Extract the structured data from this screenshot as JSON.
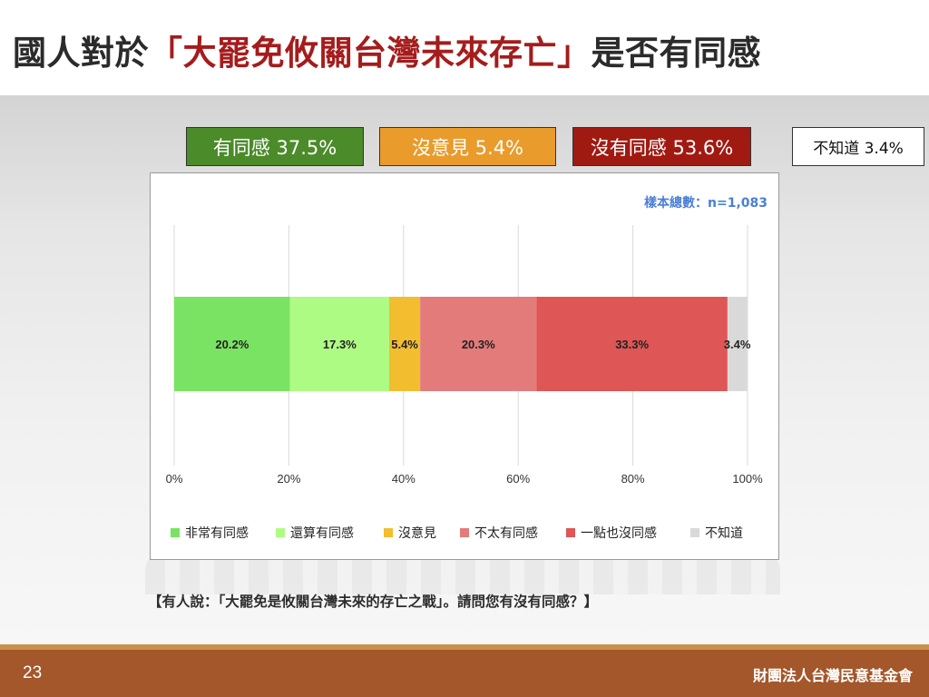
{
  "title": {
    "prefix": "國人對於",
    "highlight": "「大罷免攸關台灣未來存亡」",
    "suffix": "是否有同感"
  },
  "summary": {
    "agree": "有同感 37.5%",
    "no_opinion": "沒意見 5.4%",
    "disagree": "沒有同感 53.6%",
    "unknown": "不知道 3.4%"
  },
  "sample_size": "樣本總數：n=1,083",
  "question": "【有人說：「大罷免是攸關台灣未來的存亡之戰」。請問您有沒有同感？】",
  "footer": {
    "page_number": "23",
    "organization": "財團法人台灣民意基金會"
  },
  "colors": {
    "very_agree": "#7be363",
    "somewhat_agree": "#aefb84",
    "no_opinion": "#f2bd2f",
    "not_really": "#e47b7b",
    "not_at_all": "#de5656",
    "unknown": "#d9d9d9",
    "sample_text": "#4a7fd6",
    "grid": "#d9d9d9"
  },
  "chart_data": {
    "type": "bar",
    "orientation": "horizontal-stacked",
    "xlim": [
      0,
      100
    ],
    "x_ticks": [
      "0%",
      "20%",
      "40%",
      "60%",
      "80%",
      "100%"
    ],
    "grid": true,
    "legend_position": "bottom",
    "series": [
      {
        "name": "非常有同感",
        "value": 20.2,
        "label": "20.2%",
        "color_key": "very_agree"
      },
      {
        "name": "還算有同感",
        "value": 17.3,
        "label": "17.3%",
        "color_key": "somewhat_agree"
      },
      {
        "name": "沒意見",
        "value": 5.4,
        "label": "5.4%",
        "color_key": "no_opinion"
      },
      {
        "name": "不太有同感",
        "value": 20.3,
        "label": "20.3%",
        "color_key": "not_really"
      },
      {
        "name": "一點也沒同感",
        "value": 33.3,
        "label": "33.3%",
        "color_key": "not_at_all"
      },
      {
        "name": "不知道",
        "value": 3.4,
        "label": "3.4%",
        "color_key": "unknown"
      }
    ]
  }
}
